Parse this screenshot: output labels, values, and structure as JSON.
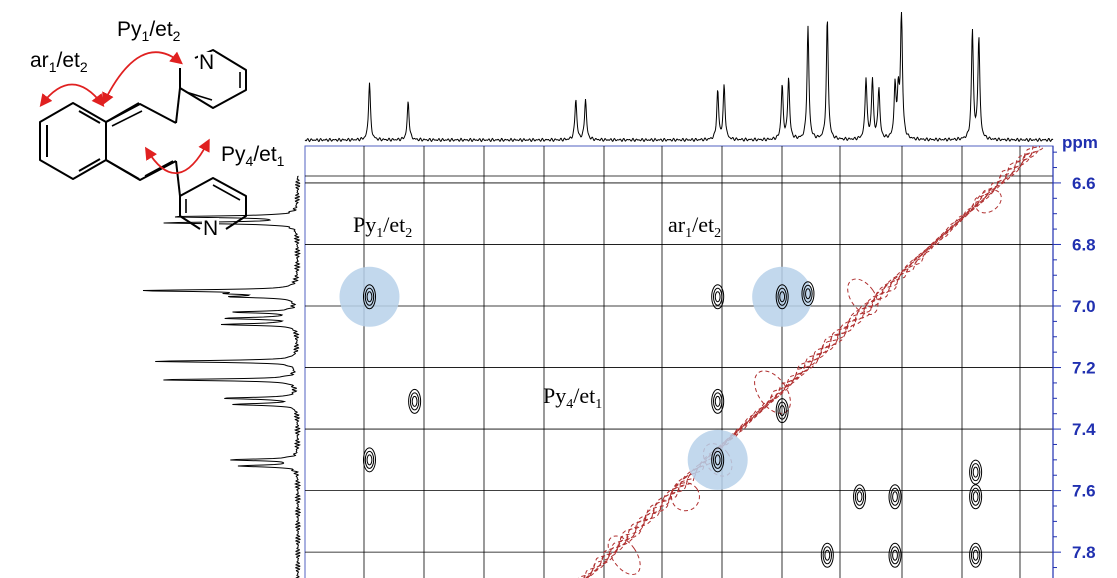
{
  "chart_data": {
    "type": "heatmap",
    "unit_label": "ppm",
    "y_axis": {
      "ticks": [
        6.6,
        6.8,
        7.0,
        7.2,
        7.4,
        7.6,
        7.8
      ],
      "tick_labels": [
        "6.6",
        "6.8",
        "7.0",
        "7.2",
        "7.4",
        "7.6",
        "7.8"
      ],
      "range": [
        6.48,
        7.91
      ],
      "color": "#2030b0"
    },
    "x_axis": {
      "range": [
        6.48,
        8.8
      ],
      "reversed": true,
      "tick_labels_visible": false
    },
    "grid": true,
    "projection_peaks": [
      {
        "ppm": 8.6,
        "intensity": 0.45
      },
      {
        "ppm": 8.48,
        "intensity": 0.3
      },
      {
        "ppm": 7.96,
        "intensity": 0.32
      },
      {
        "ppm": 7.93,
        "intensity": 0.32
      },
      {
        "ppm": 7.52,
        "intensity": 0.38
      },
      {
        "ppm": 7.5,
        "intensity": 0.42
      },
      {
        "ppm": 7.32,
        "intensity": 0.42
      },
      {
        "ppm": 7.3,
        "intensity": 0.48
      },
      {
        "ppm": 7.24,
        "intensity": 0.88
      },
      {
        "ppm": 7.18,
        "intensity": 0.94
      },
      {
        "ppm": 7.06,
        "intensity": 0.48
      },
      {
        "ppm": 7.04,
        "intensity": 0.46
      },
      {
        "ppm": 7.02,
        "intensity": 0.4
      },
      {
        "ppm": 6.97,
        "intensity": 0.4
      },
      {
        "ppm": 6.96,
        "intensity": 0.34
      },
      {
        "ppm": 6.95,
        "intensity": 1.0
      },
      {
        "ppm": 6.73,
        "intensity": 0.85
      },
      {
        "ppm": 6.71,
        "intensity": 0.8
      }
    ],
    "cross_peaks": [
      {
        "x": 8.6,
        "y": 6.97,
        "highlight": true
      },
      {
        "x": 8.6,
        "y": 7.5
      },
      {
        "x": 8.46,
        "y": 7.31
      },
      {
        "x": 7.52,
        "y": 6.97
      },
      {
        "x": 7.52,
        "y": 7.31
      },
      {
        "x": 7.52,
        "y": 7.5,
        "highlight": true
      },
      {
        "x": 7.32,
        "y": 6.97,
        "highlight": true
      },
      {
        "x": 7.32,
        "y": 7.34
      },
      {
        "x": 7.24,
        "y": 6.96
      },
      {
        "x": 7.08,
        "y": 7.62
      },
      {
        "x": 6.97,
        "y": 7.62
      },
      {
        "x": 6.72,
        "y": 7.54
      },
      {
        "x": 6.72,
        "y": 7.62
      },
      {
        "x": 7.18,
        "y": 7.81
      },
      {
        "x": 6.97,
        "y": 7.81
      },
      {
        "x": 6.72,
        "y": 7.81
      }
    ],
    "diagonal_color": "#b03030",
    "highlight_color": "#b7d1ea"
  },
  "annotations": {
    "py1_et2": {
      "base": "Py",
      "sub1": "1",
      "mid": "/et",
      "sub2": "2"
    },
    "ar1_et2": {
      "base": "ar",
      "sub1": "1",
      "mid": "/et",
      "sub2": "2"
    },
    "py4_et1": {
      "base": "Py",
      "sub1": "4",
      "mid": "/et",
      "sub2": "1"
    }
  },
  "molecule": {
    "nitrogen_label": "N",
    "labels": {
      "py1_et2": {
        "base": "Py",
        "sub1": "1",
        "mid": "/et",
        "sub2": "2"
      },
      "ar1_et2": {
        "base": "ar",
        "sub1": "1",
        "mid": "/et",
        "sub2": "2"
      },
      "py4_et1": {
        "base": "Py",
        "sub1": "4",
        "mid": "/et",
        "sub2": "1"
      }
    },
    "arrow_color": "#e02020"
  }
}
